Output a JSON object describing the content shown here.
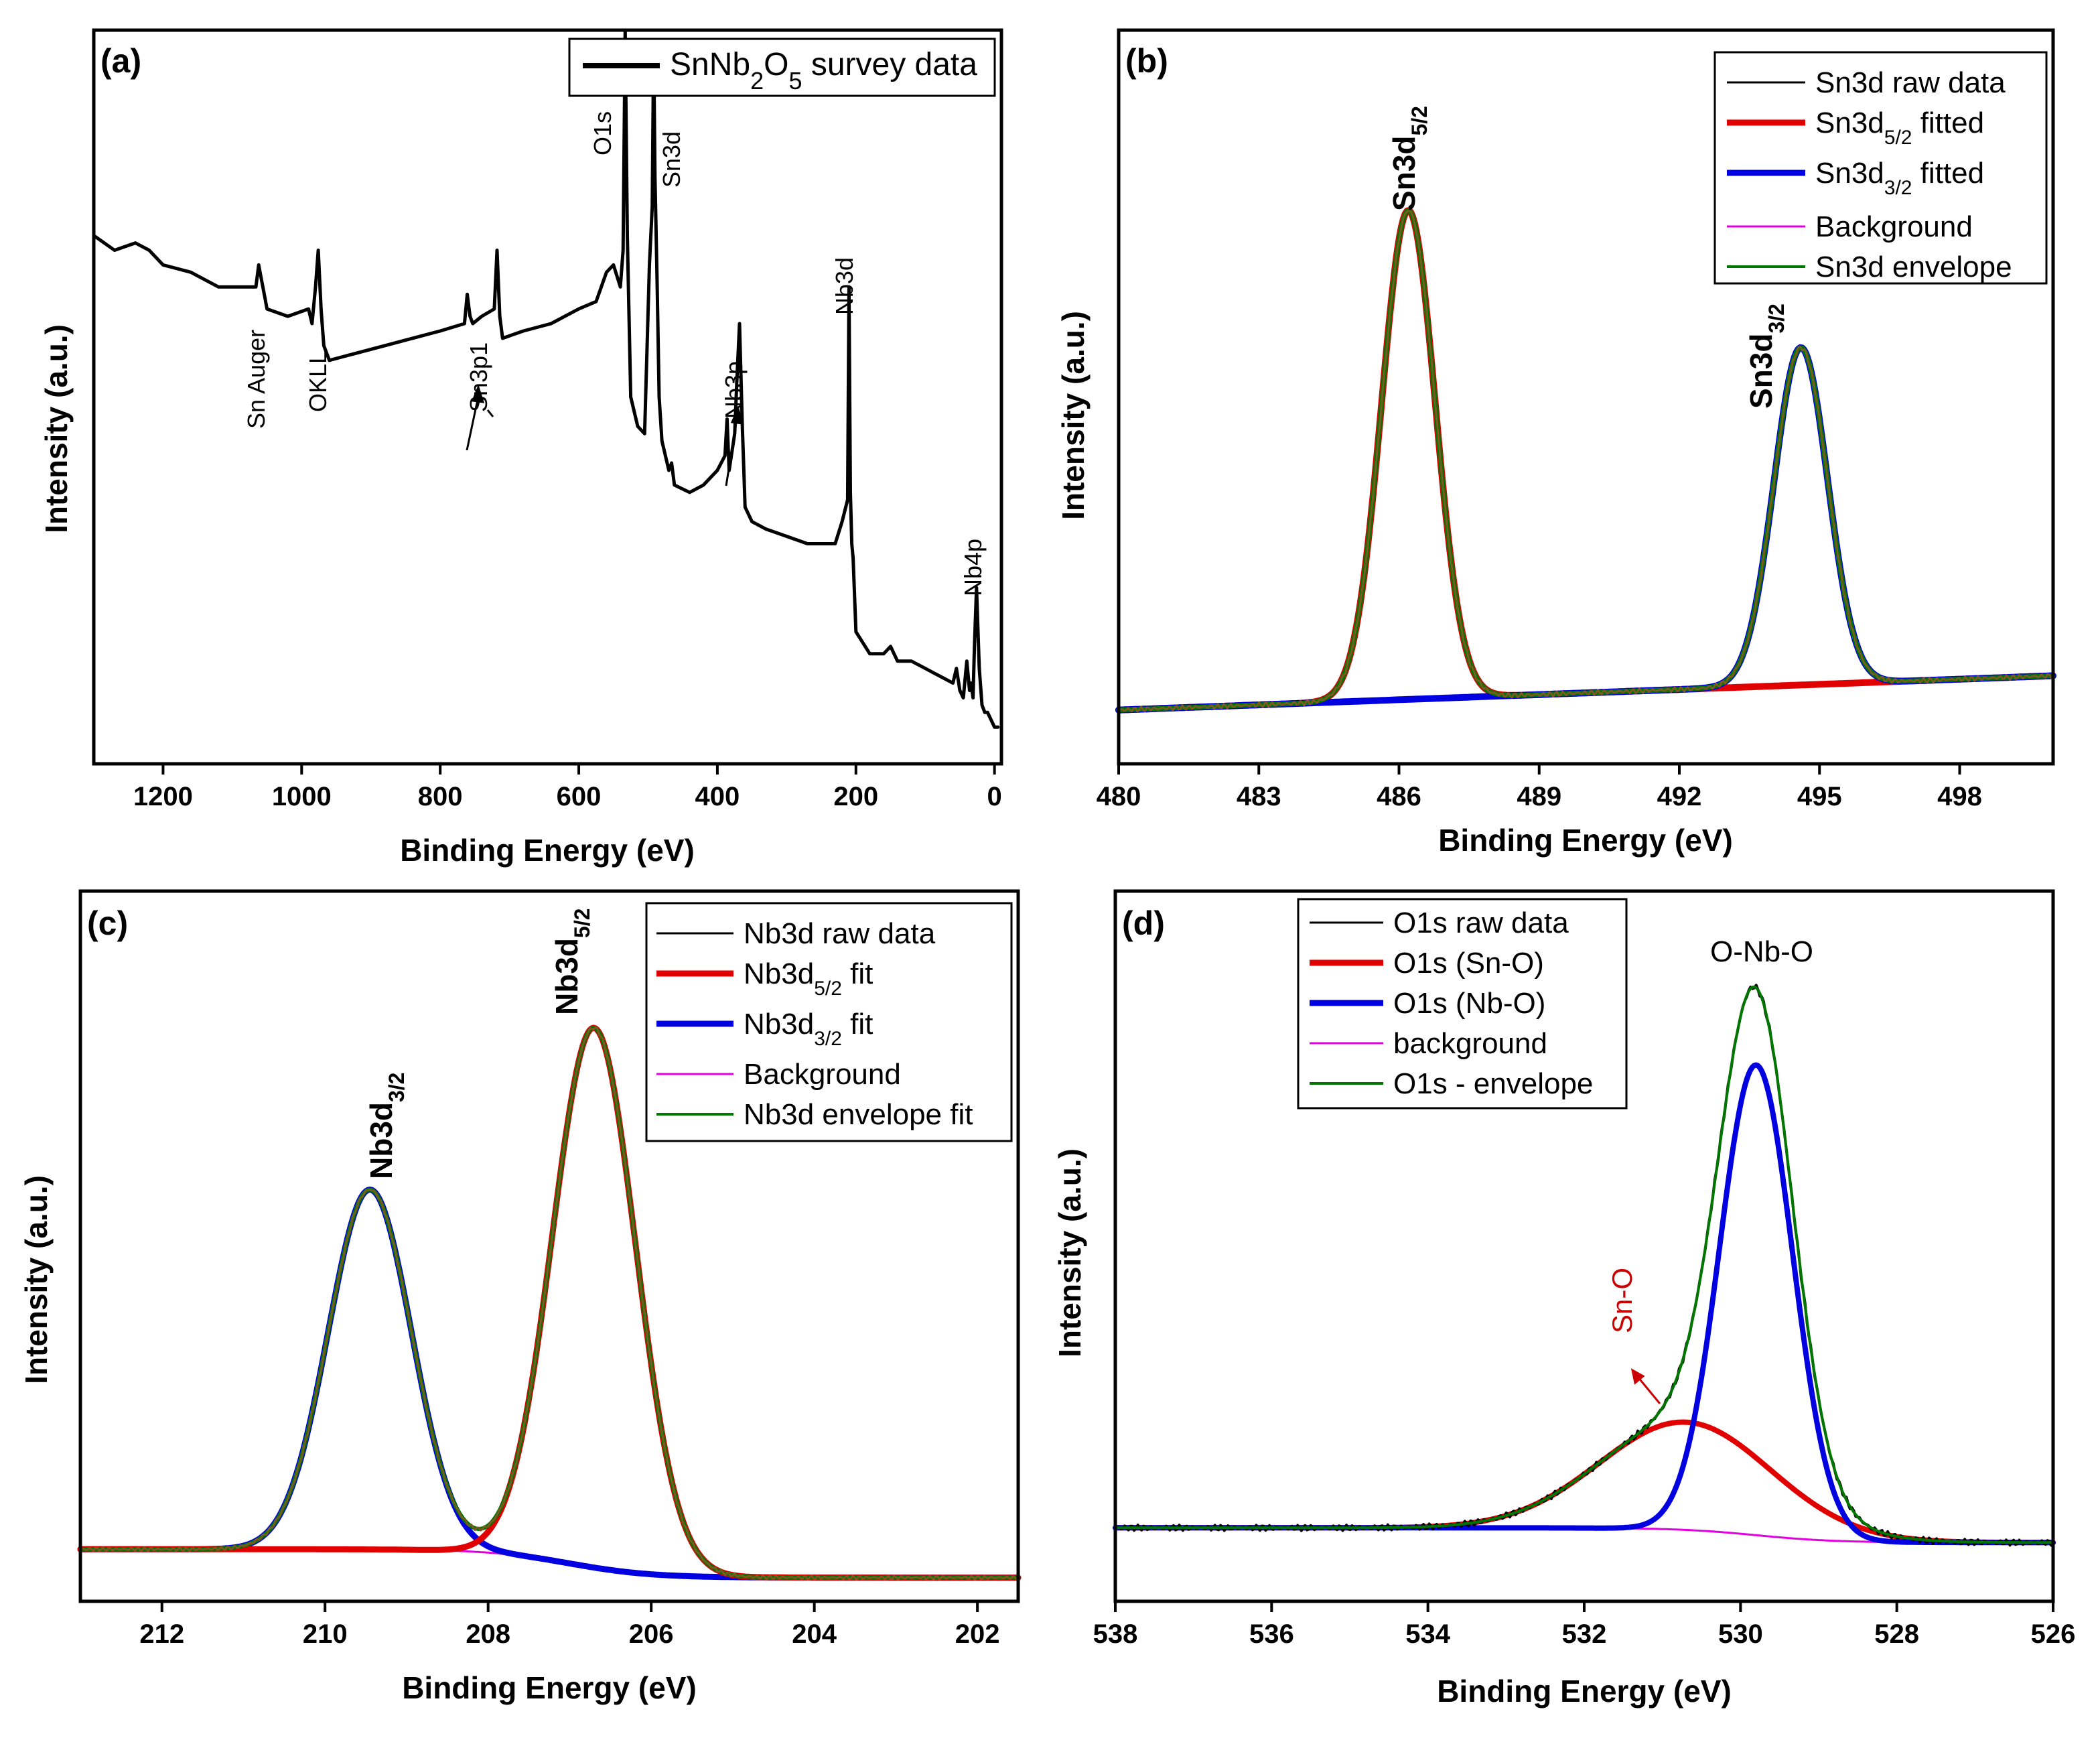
{
  "chart_data": [
    {
      "panel": "(a)",
      "type": "line",
      "xlabel": "Binding Energy (eV)",
      "ylabel": "Intensity (a.u.)",
      "xlim": [
        1300,
        -10
      ],
      "ylim": [
        0,
        100
      ],
      "xticks": [
        1200,
        1000,
        800,
        600,
        400,
        200,
        0
      ],
      "legend": [
        {
          "label": "SnNb",
          "sub1": "2",
          "mid": "O",
          "sub2": "5",
          "tail": " survey data",
          "color": "#000000"
        }
      ],
      "annotations": [
        "Sn Auger",
        "OKLL",
        "Sn3p1",
        "O1s",
        "Sn3d",
        "Nb3p",
        "Nb3d",
        "Nb4p"
      ],
      "series": [
        {
          "name": "SnNb2O5 survey data",
          "color": "#000000",
          "x": [
            1300,
            1270,
            1240,
            1220,
            1200,
            1160,
            1120,
            1090,
            1066,
            1062,
            1058,
            1054,
            1050,
            1020,
            990,
            985,
            980,
            976,
            972,
            968,
            964,
            960,
            920,
            880,
            840,
            800,
            765,
            761,
            757,
            753,
            740,
            722,
            718,
            714,
            710,
            680,
            640,
            600,
            575,
            560,
            550,
            540,
            536,
            533,
            530,
            525,
            515,
            505,
            498,
            494,
            492,
            490,
            487,
            484,
            480,
            470,
            466,
            462,
            440,
            420,
            400,
            389,
            386,
            383,
            375,
            372,
            368,
            364,
            360,
            350,
            330,
            300,
            270,
            250,
            230,
            220,
            212,
            210,
            208,
            206,
            204,
            200,
            180,
            160,
            150,
            140,
            120,
            100,
            80,
            60,
            55,
            50,
            45,
            40,
            36,
            34,
            31,
            29,
            26,
            22,
            18,
            14,
            10,
            5,
            0,
            -5
          ],
          "y": [
            72,
            70,
            71,
            70,
            68,
            67,
            65,
            65,
            65,
            68,
            66,
            64,
            62,
            61,
            62,
            60,
            65,
            70,
            62,
            57,
            56,
            55,
            56,
            57,
            58,
            59,
            60,
            64,
            61,
            60,
            61,
            62,
            70,
            61,
            58,
            59,
            60,
            62,
            63,
            67,
            68,
            65,
            70,
            100,
            72,
            50,
            46,
            45,
            68,
            76,
            98,
            80,
            66,
            50,
            44,
            40,
            41,
            38,
            37,
            38,
            40,
            42,
            47,
            40,
            45,
            52,
            60,
            46,
            35,
            33,
            32,
            31,
            30,
            30,
            30,
            33,
            36,
            65,
            37,
            30,
            28,
            18,
            15,
            15,
            16,
            14,
            14,
            13,
            12,
            11,
            13,
            10,
            9,
            14,
            10,
            11,
            9,
            16,
            24,
            13,
            8,
            7,
            7,
            6,
            5,
            5
          ]
        }
      ]
    },
    {
      "panel": "(b)",
      "type": "line",
      "xlabel": "Binding Energy (eV)",
      "ylabel": "Intensity (a.u.)",
      "xlim": [
        480,
        500
      ],
      "ylim": [
        -10,
        140
      ],
      "xticks": [
        480,
        483,
        486,
        489,
        492,
        495,
        498
      ],
      "peaks": [
        {
          "label": "Sn3d5/2",
          "center": 486.2,
          "height": 100,
          "fwhm": 1.35
        },
        {
          "label": "Sn3d3/2",
          "center": 494.6,
          "height": 69,
          "fwhm": 1.35
        }
      ],
      "background_linear": [
        480,
        1,
        500,
        8
      ],
      "legend": [
        {
          "label": "Sn3d raw data",
          "color": "#000000"
        },
        {
          "label": "Sn3d",
          "sub": "5/2",
          "tail": " fitted",
          "color": "#e00000"
        },
        {
          "label": "Sn3d",
          "sub": "3/2",
          "tail": " fitted",
          "color": "#0000e0"
        },
        {
          "label": "Background",
          "color": "#e000e0"
        },
        {
          "label": "Sn3d envelope",
          "color": "#007700"
        }
      ],
      "annotations": [
        {
          "text": "Sn3d",
          "sub": "5/2"
        },
        {
          "text": "Sn3d",
          "sub": "3/2"
        }
      ]
    },
    {
      "panel": "(c)",
      "type": "line",
      "xlabel": "Binding Energy (eV)",
      "ylabel": "Intensity (a.u.)",
      "xlim": [
        213,
        201.5
      ],
      "ylim": [
        -10,
        140
      ],
      "xticks": [
        212,
        210,
        208,
        206,
        204,
        202
      ],
      "peaks": [
        {
          "label": "Nb3d3/2",
          "center": 209.45,
          "height": 76,
          "fwhm": 1.2
        },
        {
          "label": "Nb3d5/2",
          "center": 206.7,
          "height": 114,
          "fwhm": 1.2
        }
      ],
      "background_step": {
        "high": 1,
        "low": -5,
        "center": 207.0
      },
      "legend": [
        {
          "label": "Nb3d raw data",
          "color": "#000000"
        },
        {
          "label": "Nb3d",
          "sub": "5/2",
          "tail": " fit",
          "color": "#e00000"
        },
        {
          "label": "Nb3d",
          "sub": "3/2",
          "tail": " fit",
          "color": "#0000e0"
        },
        {
          "label": "Background",
          "color": "#e000e0"
        },
        {
          "label": "Nb3d envelope fit",
          "color": "#007700"
        }
      ],
      "annotations": [
        {
          "text": "Nb3d",
          "sub": "3/2"
        },
        {
          "text": "Nb3d",
          "sub": "5/2"
        }
      ]
    },
    {
      "panel": "(d)",
      "type": "line",
      "xlabel": "Binding Energy (eV)",
      "ylabel": "Intensity (a.u.)",
      "xlim": [
        538,
        526
      ],
      "ylim": [
        -15,
        130
      ],
      "xticks": [
        538,
        536,
        534,
        532,
        530,
        528,
        526
      ],
      "peaks": [
        {
          "label": "O1s (Sn-O)",
          "center": 530.7,
          "height": 22,
          "fwhm": 2.6
        },
        {
          "label": "O1s (Nb-O)",
          "center": 529.8,
          "height": 96,
          "fwhm": 1.1
        }
      ],
      "background_step": {
        "high": 0,
        "low": -3,
        "center": 529.8
      },
      "legend": [
        {
          "label": "O1s raw data",
          "color": "#000000"
        },
        {
          "label": "O1s (Sn-O)",
          "color": "#e00000"
        },
        {
          "label": "O1s (Nb-O)",
          "color": "#0000e0"
        },
        {
          "label": "background",
          "color": "#e000e0"
        },
        {
          "label": "O1s - envelope",
          "color": "#007700"
        }
      ],
      "annotations": [
        {
          "text": "O-Nb-O"
        },
        {
          "text": "Sn-O",
          "color": "#cc0000"
        }
      ]
    }
  ]
}
